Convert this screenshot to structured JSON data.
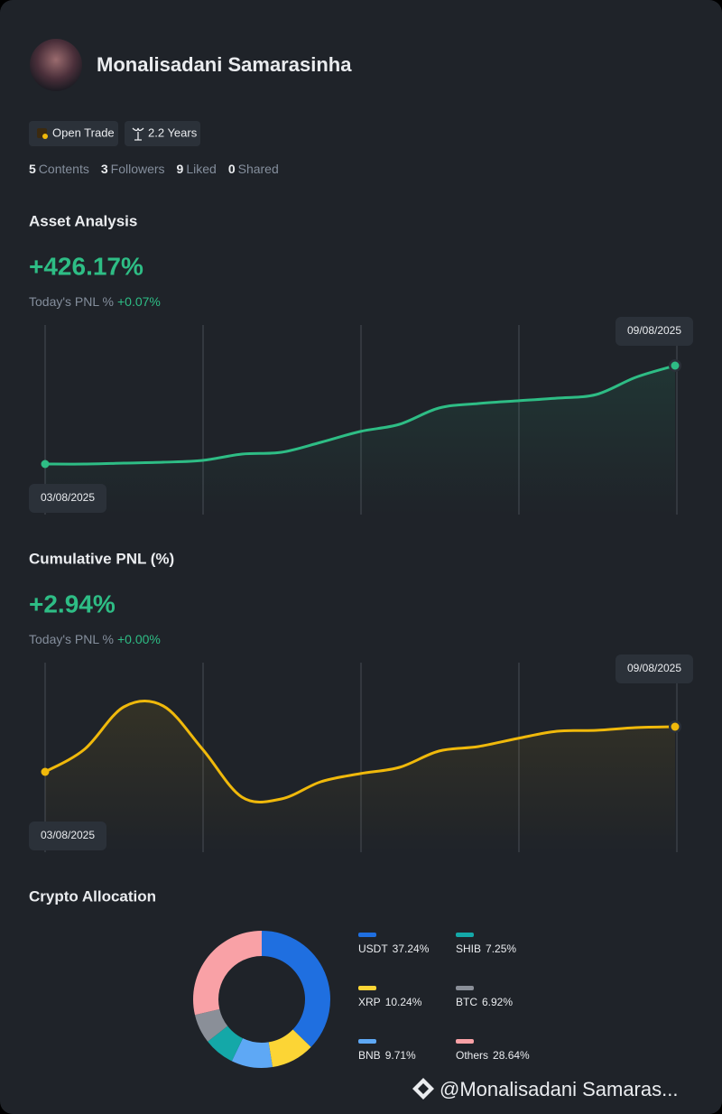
{
  "profile": {
    "name": "Monalisadani Samarasinha",
    "badges": [
      "Open Trade",
      "2.2 Years"
    ],
    "stats": [
      {
        "value": 5,
        "label": "Contents"
      },
      {
        "value": 3,
        "label": "Followers"
      },
      {
        "value": 9,
        "label": "Liked"
      },
      {
        "value": 0,
        "label": "Shared"
      }
    ]
  },
  "asset_analysis": {
    "title": "Asset Analysis",
    "value": "+426.17%",
    "today_label": "Today's PNL %",
    "today_value": "+0.07%",
    "chart": {
      "type": "line",
      "start_label": "03/08/2025",
      "end_label": "09/08/2025",
      "color": "#2ebd85",
      "ylim": [
        0,
        210
      ],
      "values": [
        56,
        56,
        57,
        58,
        60,
        67,
        69,
        80,
        92,
        100,
        118,
        123,
        126,
        129,
        133,
        152,
        165
      ]
    }
  },
  "cumulative_pnl": {
    "title": "Cumulative PNL (%)",
    "value": "+2.94%",
    "today_label": "Today's PNL %",
    "today_value": "+0.00%",
    "chart": {
      "type": "line",
      "start_label": "03/08/2025",
      "end_label": "09/08/2025",
      "color": "#f0b90b",
      "ylim": [
        0,
        210
      ],
      "values": [
        89,
        114,
        161,
        162,
        114,
        61,
        59,
        78,
        87,
        94,
        112,
        117,
        126,
        134,
        135,
        138,
        139
      ]
    }
  },
  "allocation": {
    "title": "Crypto Allocation",
    "chart": {
      "type": "pie",
      "categories": [
        "USDT",
        "XRP",
        "BNB",
        "SHIB",
        "BTC",
        "Others"
      ],
      "values": [
        37.24,
        10.24,
        9.71,
        7.25,
        6.92,
        28.64
      ],
      "value_labels": [
        "37.24%",
        "10.24%",
        "9.71%",
        "7.25%",
        "6.92%",
        "28.64%"
      ],
      "colors": [
        "#1f6fe0",
        "#fcd535",
        "#5ea8f5",
        "#14a8a8",
        "#8a8f98",
        "#f9a1a6"
      ]
    }
  },
  "watermark": "@Monalisadani Samaras..."
}
